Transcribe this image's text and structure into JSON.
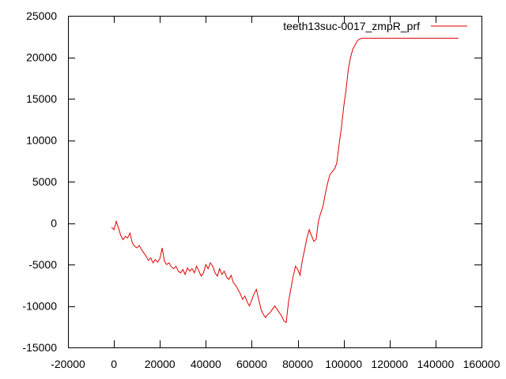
{
  "chart_data": {
    "type": "line",
    "title": "",
    "xlabel": "",
    "ylabel": "",
    "xlim": [
      -20000,
      160000
    ],
    "ylim": [
      -15000,
      25000
    ],
    "x_ticks": [
      -20000,
      0,
      20000,
      40000,
      60000,
      80000,
      100000,
      120000,
      140000,
      160000
    ],
    "y_ticks": [
      -15000,
      -10000,
      -5000,
      0,
      5000,
      10000,
      15000,
      20000,
      25000
    ],
    "x_tick_labels": [
      "-20000",
      "0",
      "20000",
      "40000",
      "60000",
      "80000",
      "100000",
      "120000",
      "140000",
      "160000"
    ],
    "y_tick_labels": [
      "-15000",
      "-10000",
      "-5000",
      "0",
      "5000",
      "10000",
      "15000",
      "20000",
      "25000"
    ],
    "grid": false,
    "legend_position": "top-right",
    "series": [
      {
        "name": "teeth13suc-0017_zmpR_prf",
        "color": "#dd0000",
        "x": [
          -1000,
          0,
          1000,
          2000,
          3000,
          4000,
          5000,
          6000,
          7000,
          8000,
          9000,
          10000,
          11000,
          12000,
          13000,
          14000,
          15000,
          16000,
          17000,
          18000,
          19000,
          20000,
          21000,
          22000,
          23000,
          24000,
          25000,
          26000,
          27000,
          28000,
          29000,
          30000,
          31000,
          32000,
          33000,
          34000,
          35000,
          36000,
          37000,
          38000,
          39000,
          40000,
          41000,
          42000,
          43000,
          44000,
          45000,
          46000,
          47000,
          48000,
          49000,
          50000,
          51000,
          52000,
          53000,
          54000,
          55000,
          56000,
          57000,
          58000,
          59000,
          60000,
          61000,
          62000,
          63000,
          64000,
          65000,
          66000,
          67000,
          68000,
          69000,
          70000,
          71000,
          72000,
          73000,
          74000,
          75000,
          76000,
          77000,
          78000,
          79000,
          80000,
          81000,
          82000,
          83000,
          84000,
          85000,
          86000,
          87000,
          88000,
          89000,
          90000,
          91000,
          92000,
          93000,
          94000,
          95000,
          96000,
          97000,
          98000,
          99000,
          100000,
          101000,
          102000,
          103000,
          104000,
          105000,
          106000,
          107000,
          108000,
          150000
        ],
        "y": [
          -500,
          -800,
          200,
          -600,
          -1500,
          -2000,
          -1600,
          -1800,
          -1200,
          -2400,
          -2800,
          -3000,
          -2700,
          -3200,
          -3600,
          -4000,
          -4500,
          -4200,
          -4800,
          -4400,
          -4700,
          -4300,
          -3000,
          -4600,
          -5000,
          -4800,
          -5300,
          -5500,
          -5200,
          -5800,
          -6000,
          -5600,
          -6200,
          -5400,
          -5800,
          -5500,
          -6000,
          -5200,
          -5800,
          -6400,
          -6000,
          -5000,
          -5500,
          -4800,
          -5200,
          -6000,
          -6400,
          -5500,
          -6200,
          -5800,
          -6500,
          -6800,
          -6300,
          -7200,
          -7500,
          -8000,
          -8500,
          -9200,
          -8800,
          -9500,
          -10000,
          -9300,
          -8500,
          -8000,
          -9200,
          -10400,
          -11000,
          -11400,
          -11000,
          -10800,
          -10400,
          -10000,
          -10400,
          -10800,
          -11200,
          -11800,
          -12000,
          -9500,
          -8000,
          -6500,
          -5200,
          -5600,
          -6300,
          -4500,
          -3200,
          -1800,
          -800,
          -1500,
          -2200,
          -2000,
          200,
          1200,
          2000,
          3500,
          4800,
          5800,
          6200,
          6500,
          7200,
          9500,
          11500,
          14000,
          16000,
          18500,
          20000,
          21000,
          21500,
          22000,
          22200,
          22300,
          22300
        ]
      }
    ]
  }
}
